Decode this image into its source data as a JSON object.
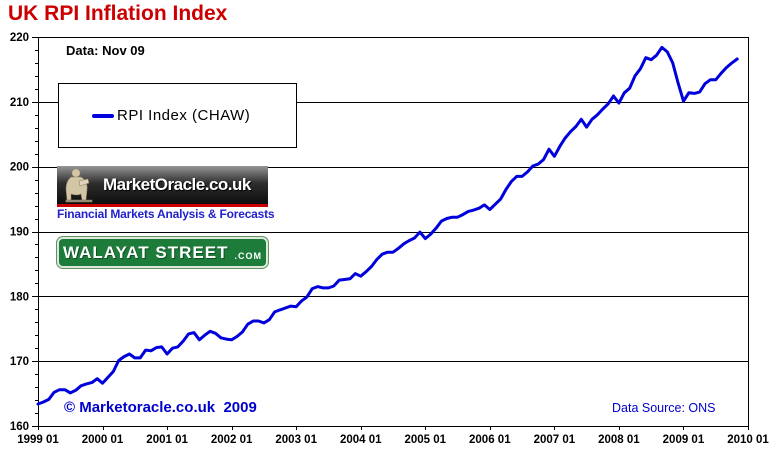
{
  "header": {
    "title": "UK RPI Inflation Index",
    "title_color": "#cc0000"
  },
  "annotations": {
    "data_asof": "Data: Nov 09",
    "copyright": "© Marketoracle.co.uk  2009",
    "data_source": "Data Source: ONS"
  },
  "legend": {
    "label": "RPI Index  (CHAW)",
    "line_color": "#0000dd"
  },
  "logos": {
    "market_oracle": {
      "wordmark": "MarketOracle.co.uk",
      "tagline": "Financial Markets Analysis & Forecasts",
      "statue_icon": "seated-oracle-statue-icon"
    },
    "walayat_street": {
      "name": "WALAYAT STREET",
      "suffix": ".COM"
    }
  },
  "chart_data": {
    "type": "line",
    "title": "UK RPI Inflation Index",
    "series_name": "RPI Index (CHAW)",
    "line_color": "#0000dd",
    "grid": "horizontal-major-only",
    "legend_position": "top-left-box",
    "ylim": [
      160,
      220
    ],
    "y_ticks": [
      160,
      170,
      180,
      190,
      200,
      210,
      220
    ],
    "y_minor_step": 2,
    "x_tick_labels": [
      "1999 01",
      "2000 01",
      "2001 01",
      "2002 01",
      "2003 01",
      "2004 01",
      "2005 01",
      "2006 01",
      "2007 01",
      "2008 01",
      "2009 01",
      "2010 01"
    ],
    "start_month": "1999-01",
    "end_month": "2009-11",
    "x_axis_span_months": 132,
    "values": [
      163.4,
      163.7,
      164.1,
      165.2,
      165.6,
      165.6,
      165.1,
      165.5,
      166.2,
      166.5,
      166.7,
      167.3,
      166.6,
      167.5,
      168.4,
      170.1,
      170.7,
      171.1,
      170.5,
      170.5,
      171.7,
      171.6,
      172.1,
      172.2,
      171.1,
      172.0,
      172.2,
      173.1,
      174.2,
      174.4,
      173.3,
      174.0,
      174.6,
      174.3,
      173.6,
      173.4,
      173.3,
      173.8,
      174.5,
      175.7,
      176.2,
      176.2,
      175.9,
      176.4,
      177.6,
      177.9,
      178.2,
      178.5,
      178.4,
      179.3,
      179.9,
      181.2,
      181.5,
      181.3,
      181.3,
      181.6,
      182.5,
      182.6,
      182.7,
      183.5,
      183.1,
      183.8,
      184.6,
      185.7,
      186.5,
      186.8,
      186.8,
      187.4,
      188.1,
      188.6,
      189.0,
      189.9,
      188.9,
      189.6,
      190.5,
      191.6,
      192.0,
      192.2,
      192.2,
      192.6,
      193.1,
      193.3,
      193.6,
      194.1,
      193.4,
      194.2,
      195.0,
      196.5,
      197.7,
      198.5,
      198.5,
      199.2,
      200.1,
      200.4,
      201.1,
      202.7,
      201.6,
      203.1,
      204.4,
      205.4,
      206.2,
      207.3,
      206.1,
      207.3,
      208.0,
      208.9,
      209.7,
      210.9,
      209.8,
      211.4,
      212.1,
      214.0,
      215.1,
      216.8,
      216.5,
      217.2,
      218.4,
      217.7,
      216.0,
      212.9,
      210.1,
      211.4,
      211.3,
      211.5,
      212.8,
      213.4,
      213.4,
      214.4,
      215.3,
      216.0,
      216.6
    ]
  }
}
